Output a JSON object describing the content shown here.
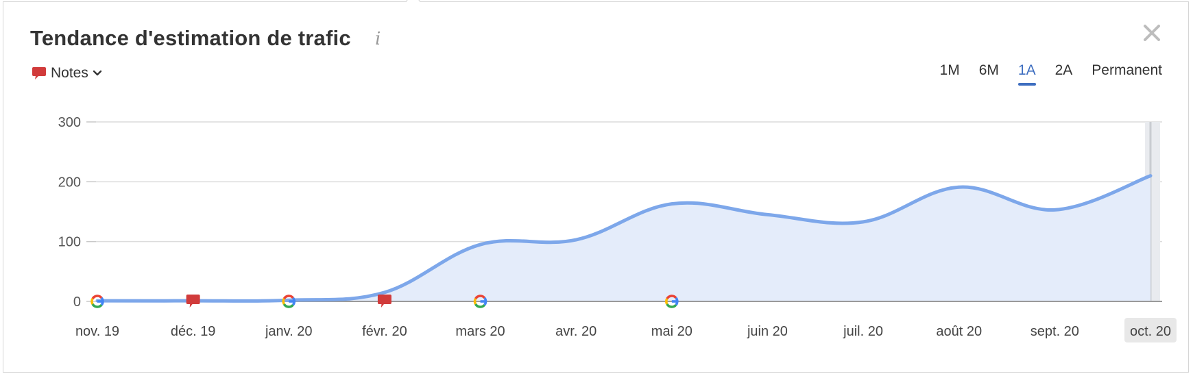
{
  "title": "Tendance d'estimation de trafic",
  "info_icon": "i",
  "notes": {
    "label": "Notes",
    "icon": "speech-bubble-icon",
    "color": "#d13b3b"
  },
  "ranges": [
    {
      "label": "1M",
      "active": false
    },
    {
      "label": "6M",
      "active": false
    },
    {
      "label": "1A",
      "active": true
    },
    {
      "label": "2A",
      "active": false
    },
    {
      "label": "Permanent",
      "active": false
    }
  ],
  "colors": {
    "line": "#7da7ea",
    "area": "#e4ecfa",
    "accent": "#3e6ec0",
    "note": "#d13b3b"
  },
  "chart_data": {
    "type": "area",
    "x_labels": [
      "nov. 19",
      "déc. 19",
      "janv. 20",
      "févr. 20",
      "mars 20",
      "avr. 20",
      "mai 20",
      "juin 20",
      "juil. 20",
      "août 20",
      "sept. 20",
      "oct. 20"
    ],
    "highlighted_x_label": "oct. 20",
    "y_ticks": [
      "0",
      "100",
      "200",
      "300"
    ],
    "ylim": [
      0,
      300
    ],
    "grid": true,
    "series": [
      {
        "points": [
          [
            "nov. 19",
            1
          ],
          [
            "déc. 19",
            1
          ],
          [
            "janv. 20",
            2
          ],
          [
            "févr. 20",
            15
          ],
          [
            "mars 20",
            95
          ],
          [
            "avr. 20",
            103
          ],
          [
            "mai 20",
            163
          ],
          [
            "juin 20",
            145
          ],
          [
            "juil. 20",
            133
          ],
          [
            "août 20",
            191
          ],
          [
            "sept. 20",
            153
          ],
          [
            "oct. 20",
            210
          ]
        ]
      }
    ],
    "markers": [
      {
        "type": "google-update",
        "x": "nov. 19",
        "icon": "google-icon"
      },
      {
        "type": "note",
        "x": "déc. 19",
        "icon": "note-icon"
      },
      {
        "type": "google-update",
        "x": "janv. 20",
        "icon": "google-icon"
      },
      {
        "type": "note",
        "x": "févr. 20",
        "icon": "note-icon"
      },
      {
        "type": "google-update",
        "x": "mars 20",
        "icon": "google-icon"
      },
      {
        "type": "google-update",
        "x": "mai 20",
        "icon": "google-icon"
      }
    ]
  }
}
